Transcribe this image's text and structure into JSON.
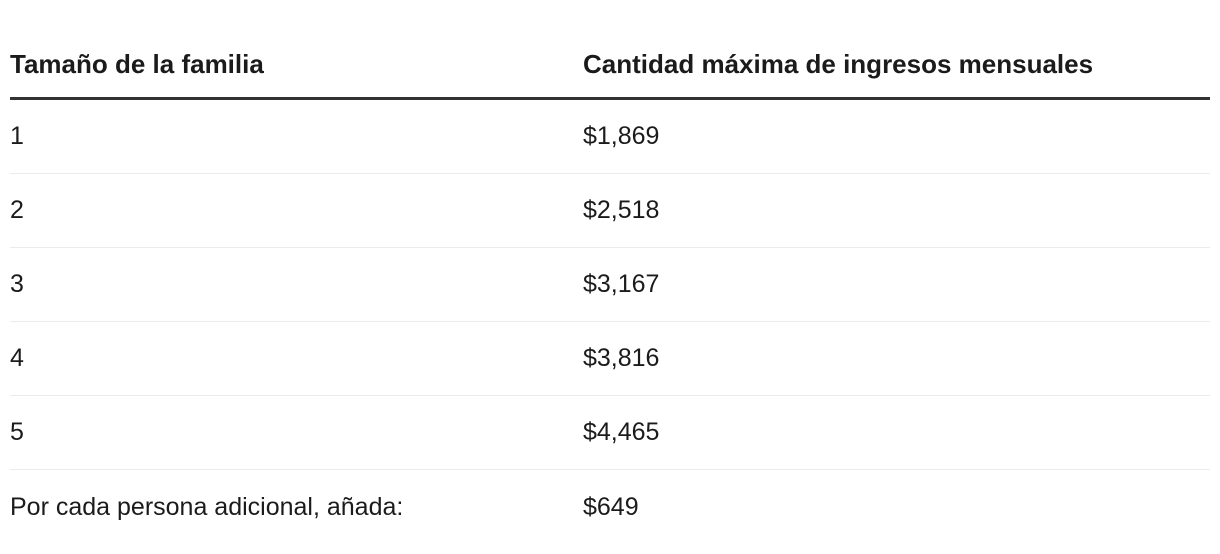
{
  "table": {
    "headers": {
      "family_size": "Tamaño de la familia",
      "max_income": "Cantidad máxima de ingresos mensuales"
    },
    "rows": [
      {
        "family_size": "1",
        "max_income": "$1,869"
      },
      {
        "family_size": "2",
        "max_income": "$2,518"
      },
      {
        "family_size": "3",
        "max_income": "$3,167"
      },
      {
        "family_size": "4",
        "max_income": "$3,816"
      },
      {
        "family_size": "5",
        "max_income": "$4,465"
      },
      {
        "family_size": "Por cada persona adicional, añada:",
        "max_income": "$649"
      }
    ],
    "colors": {
      "text": "#1b1b1b",
      "header_rule": "#333333",
      "row_rule": "#ebebeb",
      "background": "#ffffff"
    }
  }
}
